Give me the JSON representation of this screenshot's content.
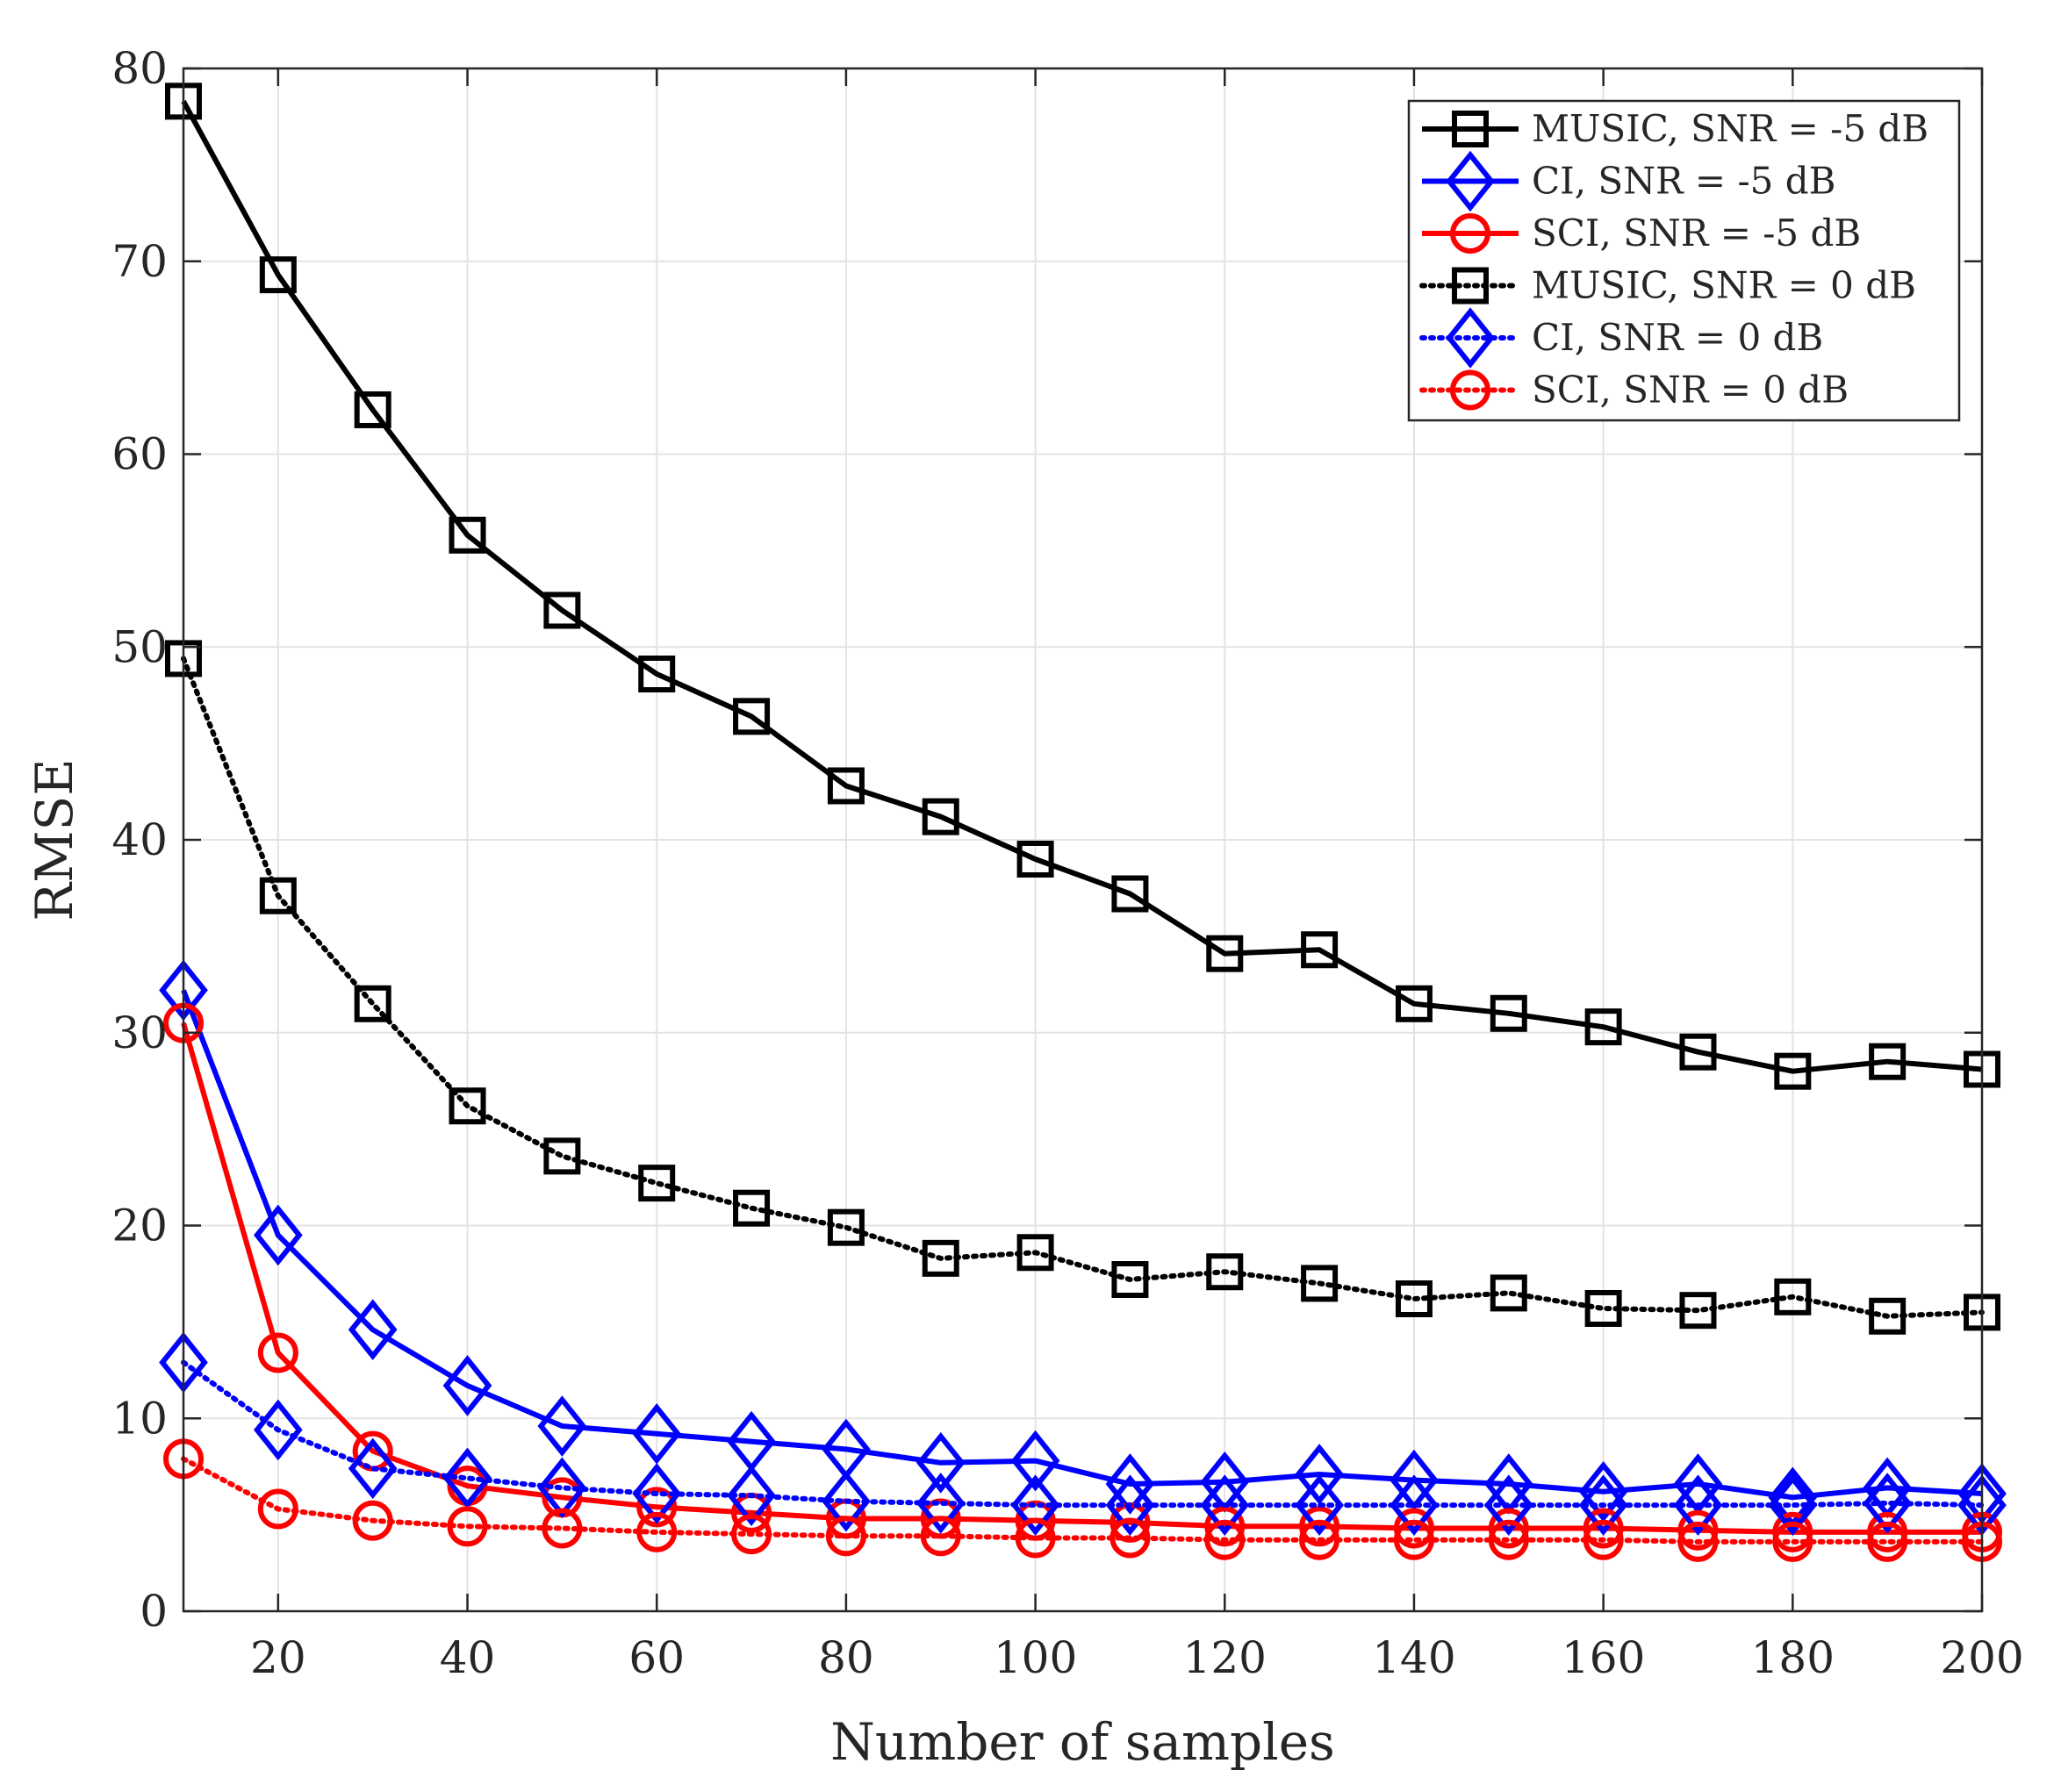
{
  "chart_data": {
    "type": "line",
    "title": "",
    "xlabel": "Number of samples",
    "ylabel": "RMSE",
    "xlim": [
      10,
      200
    ],
    "ylim": [
      0,
      80
    ],
    "xticks": [
      20,
      40,
      60,
      80,
      100,
      120,
      140,
      160,
      180,
      200
    ],
    "yticks": [
      0,
      10,
      20,
      30,
      40,
      50,
      60,
      70,
      80
    ],
    "xtick_labels": [
      "20",
      "40",
      "60",
      "80",
      "100",
      "120",
      "140",
      "160",
      "180",
      "200"
    ],
    "ytick_labels": [
      "0",
      "10",
      "20",
      "30",
      "40",
      "50",
      "60",
      "70",
      "80"
    ],
    "grid": true,
    "legend_position": "top-right",
    "x": [
      10,
      20,
      30,
      40,
      50,
      60,
      70,
      80,
      90,
      100,
      110,
      120,
      130,
      140,
      150,
      160,
      170,
      180,
      190,
      200
    ],
    "series": [
      {
        "name": "MUSIC, SNR = -5 dB",
        "color": "#000000",
        "line_style": "solid",
        "marker": "square",
        "values": [
          78.3,
          69.3,
          62.3,
          55.8,
          51.9,
          48.6,
          46.4,
          42.8,
          41.2,
          39.0,
          37.2,
          34.1,
          34.3,
          31.5,
          31.0,
          30.3,
          29.0,
          28.0,
          28.5,
          28.1
        ]
      },
      {
        "name": "CI, SNR = -5 dB",
        "color": "#0000ff",
        "line_style": "solid",
        "marker": "diamond",
        "values": [
          32.2,
          19.5,
          14.6,
          11.7,
          9.6,
          9.2,
          8.8,
          8.4,
          7.7,
          7.8,
          6.6,
          6.7,
          7.1,
          6.8,
          6.6,
          6.2,
          6.6,
          5.9,
          6.4,
          6.1
        ]
      },
      {
        "name": "SCI, SNR = -5 dB",
        "color": "#ff0000",
        "line_style": "solid",
        "marker": "circle",
        "values": [
          30.5,
          13.4,
          8.3,
          6.5,
          5.9,
          5.4,
          5.1,
          4.8,
          4.8,
          4.7,
          4.6,
          4.4,
          4.4,
          4.3,
          4.3,
          4.3,
          4.2,
          4.1,
          4.1,
          4.1
        ]
      },
      {
        "name": "MUSIC, SNR = 0 dB",
        "color": "#000000",
        "line_style": "dotted",
        "marker": "square",
        "values": [
          49.4,
          37.1,
          31.5,
          26.2,
          23.6,
          22.2,
          20.9,
          19.9,
          18.3,
          18.6,
          17.2,
          17.6,
          17.0,
          16.2,
          16.5,
          15.7,
          15.6,
          16.3,
          15.3,
          15.5
        ]
      },
      {
        "name": "CI, SNR = 0 dB",
        "color": "#0000ff",
        "line_style": "dotted",
        "marker": "diamond",
        "values": [
          12.9,
          9.4,
          7.4,
          6.9,
          6.4,
          6.1,
          6.0,
          5.7,
          5.6,
          5.5,
          5.5,
          5.5,
          5.5,
          5.5,
          5.5,
          5.5,
          5.5,
          5.5,
          5.6,
          5.5
        ]
      },
      {
        "name": "SCI, SNR = 0 dB",
        "color": "#ff0000",
        "line_style": "dotted",
        "marker": "circle",
        "values": [
          7.9,
          5.3,
          4.7,
          4.4,
          4.3,
          4.1,
          4.0,
          3.9,
          3.9,
          3.8,
          3.8,
          3.7,
          3.7,
          3.7,
          3.7,
          3.7,
          3.6,
          3.6,
          3.6,
          3.6
        ]
      }
    ]
  }
}
